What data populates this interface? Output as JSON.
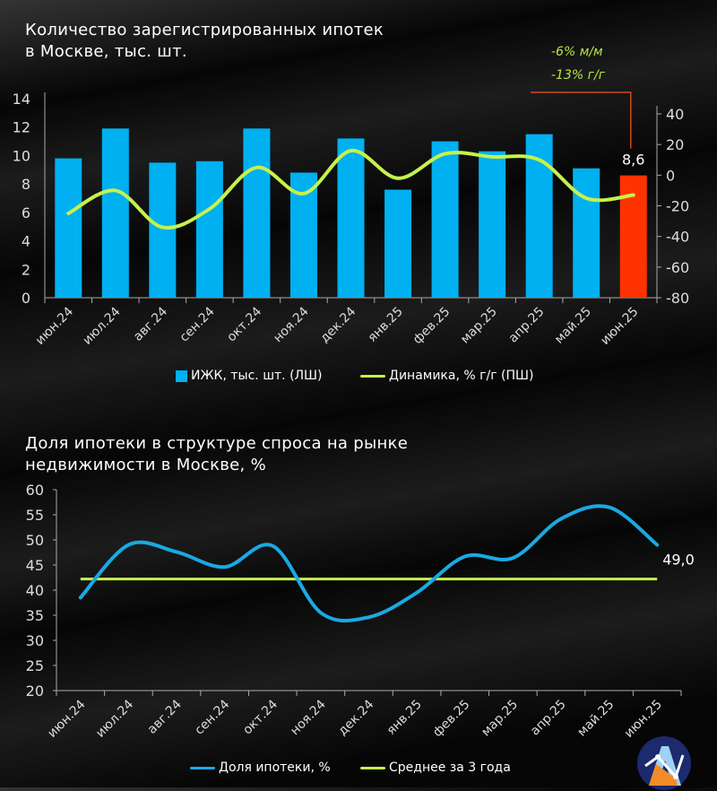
{
  "chart_data": [
    {
      "type": "bar",
      "title": "Количество зарегистрированных ипотек в Москве, тыс. шт.",
      "title_lines": [
        "Количество зарегистрированных ипотек",
        "в Москве, тыс. шт."
      ],
      "categories": [
        "июн.24",
        "июл.24",
        "авг.24",
        "сен.24",
        "окт.24",
        "ноя.24",
        "дек.24",
        "янв.25",
        "фев.25",
        "мар.25",
        "апр.25",
        "май.25",
        "июн.25"
      ],
      "series": [
        {
          "name": "ИЖК, тыс. шт. (ЛШ)",
          "type": "bar",
          "axis": "left",
          "color": "#00b0f0",
          "highlight_last_color": "#ff3300",
          "values": [
            9.8,
            11.9,
            9.5,
            9.6,
            11.9,
            8.8,
            11.2,
            7.6,
            11.0,
            10.3,
            11.5,
            9.1,
            8.6
          ]
        },
        {
          "name": "Динамика, % г/г (ПШ)",
          "type": "line",
          "axis": "right",
          "color": "#c6f24a",
          "values": [
            -25,
            -10,
            -34,
            -22,
            5,
            -12,
            16,
            -2,
            14,
            12,
            10,
            -15,
            -13
          ]
        }
      ],
      "left_axis": {
        "min": 0,
        "max": 14,
        "ticks": [
          "0",
          "2",
          "4",
          "6",
          "8",
          "10",
          "12",
          "14"
        ]
      },
      "right_axis": {
        "min": -80,
        "max": 50,
        "ticks": [
          "-80",
          "-60",
          "-40",
          "-20",
          "0",
          "20",
          "40"
        ]
      },
      "data_label": "8,6",
      "annotations": [
        "-6% м/м",
        "-13% г/г"
      ],
      "legend": "bottom"
    },
    {
      "type": "line",
      "title": "Доля ипотеки в структуре спроса на рынке недвижимости в Москве, %",
      "title_lines": [
        "Доля ипотеки в структуре спроса на рынке",
        "недвижимости в Москве, %"
      ],
      "categories": [
        "июн.24",
        "июл.24",
        "авг.24",
        "сен.24",
        "окт.24",
        "ноя.24",
        "дек.24",
        "янв.25",
        "фев.25",
        "мар.25",
        "апр.25",
        "май.25",
        "июн.25"
      ],
      "series": [
        {
          "name": "Доля ипотеки, %",
          "color": "#1aa9e3",
          "values": [
            38.5,
            49.0,
            47.6,
            44.6,
            48.8,
            35.5,
            34.6,
            39.5,
            46.7,
            46.4,
            54.2,
            56.5,
            49.0
          ]
        },
        {
          "name": "Среднее за 3 года",
          "color": "#c6f24a",
          "values": [
            42.2,
            42.2,
            42.2,
            42.2,
            42.2,
            42.2,
            42.2,
            42.2,
            42.2,
            42.2,
            42.2,
            42.2,
            42.2
          ]
        }
      ],
      "y_axis": {
        "min": 20,
        "max": 60,
        "ticks": [
          "20",
          "25",
          "30",
          "35",
          "40",
          "45",
          "50",
          "55",
          "60"
        ]
      },
      "data_label": "49,0",
      "legend": "bottom"
    }
  ]
}
